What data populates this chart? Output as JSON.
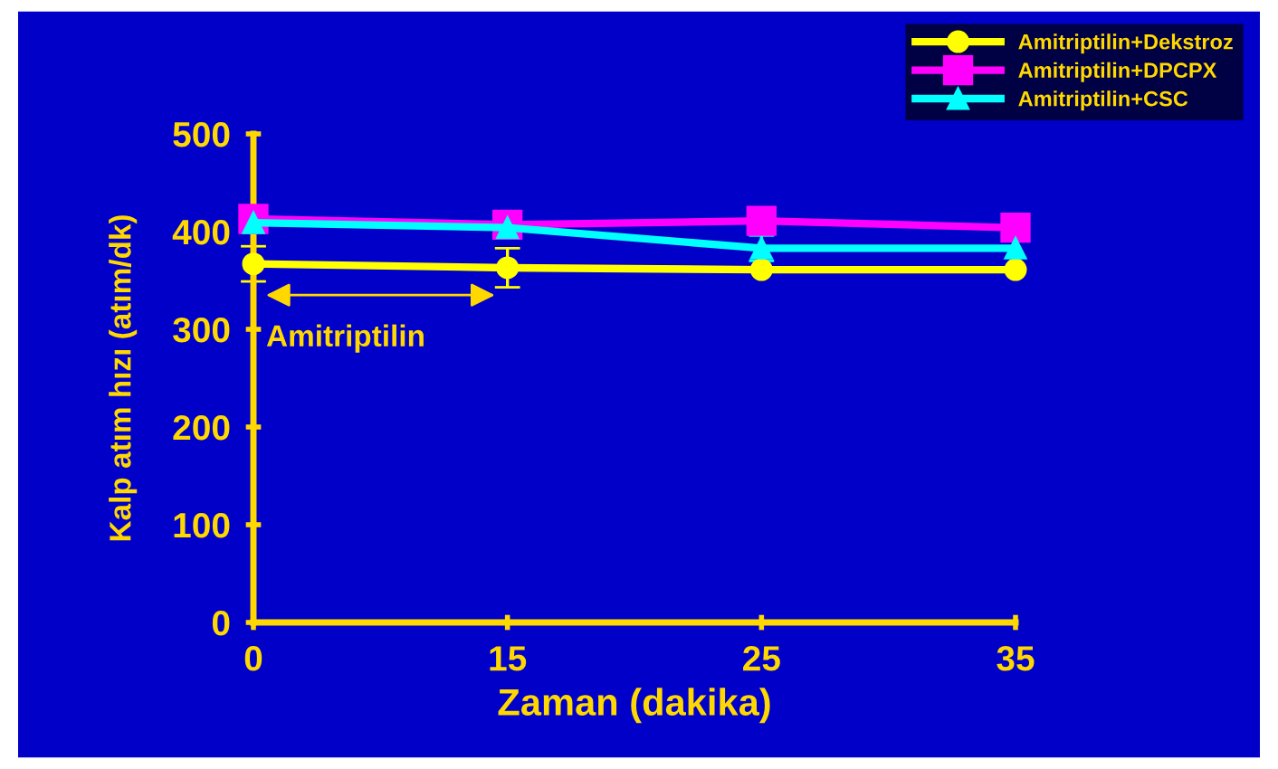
{
  "chart_data": {
    "type": "line",
    "xlabel": "Zaman (dakika)",
    "ylabel": "Kalp atım hızı (atım/dk)",
    "categories": [
      "0",
      "15",
      "25",
      "35"
    ],
    "ylim": [
      0,
      500
    ],
    "yticks": [
      0,
      100,
      200,
      300,
      400,
      500
    ],
    "series": [
      {
        "name": "Amitriptilin+Dekstroz",
        "color": "#ffff00",
        "marker": "circle",
        "values": [
          367,
          363,
          361,
          361
        ],
        "errors": [
          18,
          20,
          null,
          null
        ]
      },
      {
        "name": "Amitriptilin+DPCPX",
        "color": "#ff00ff",
        "marker": "square",
        "values": [
          413,
          407,
          411,
          404
        ],
        "errors": [
          null,
          13,
          null,
          null
        ]
      },
      {
        "name": "Amitriptilin+CSC",
        "color": "#00ffff",
        "marker": "triangle",
        "values": [
          409,
          404,
          383,
          383
        ],
        "errors": [
          10,
          null,
          13,
          null
        ]
      }
    ],
    "annotations": [
      "Amitriptilin"
    ],
    "grid": false,
    "legend": "top right"
  }
}
